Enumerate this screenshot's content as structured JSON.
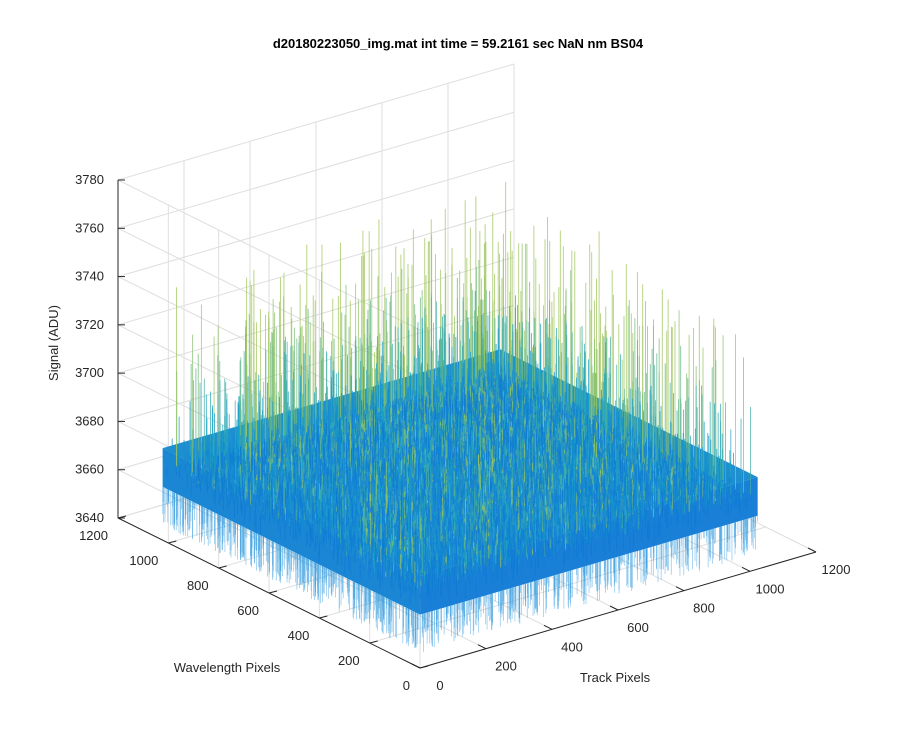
{
  "chart_data": {
    "type": "surface",
    "title": "d20180223050_img.mat int time = 59.2161 sec  NaN nm BS04",
    "xlabel": "Track Pixels",
    "ylabel": "Wavelength Pixels",
    "zlabel": "Signal (ADU)",
    "xlim": [
      0,
      1200
    ],
    "ylim": [
      0,
      1200
    ],
    "zlim": [
      3640,
      3780
    ],
    "xticks": [
      "0",
      "200",
      "400",
      "600",
      "800",
      "1000",
      "1200"
    ],
    "yticks": [
      "0",
      "200",
      "400",
      "600",
      "800",
      "1000",
      "1200"
    ],
    "zticks": [
      "3640",
      "3660",
      "3680",
      "3700",
      "3720",
      "3740",
      "3760",
      "3780"
    ],
    "data_extent": {
      "x": [
        1,
        1024
      ],
      "y": [
        1,
        1024
      ]
    },
    "signal": {
      "mean": 3670,
      "noise_min": 3646,
      "noise_max": 3752
    },
    "grid": true,
    "colormap": "parula",
    "colors": {
      "low": "#0d6fd9",
      "mid": "#19a3c9",
      "high": "#9fc65a"
    }
  }
}
